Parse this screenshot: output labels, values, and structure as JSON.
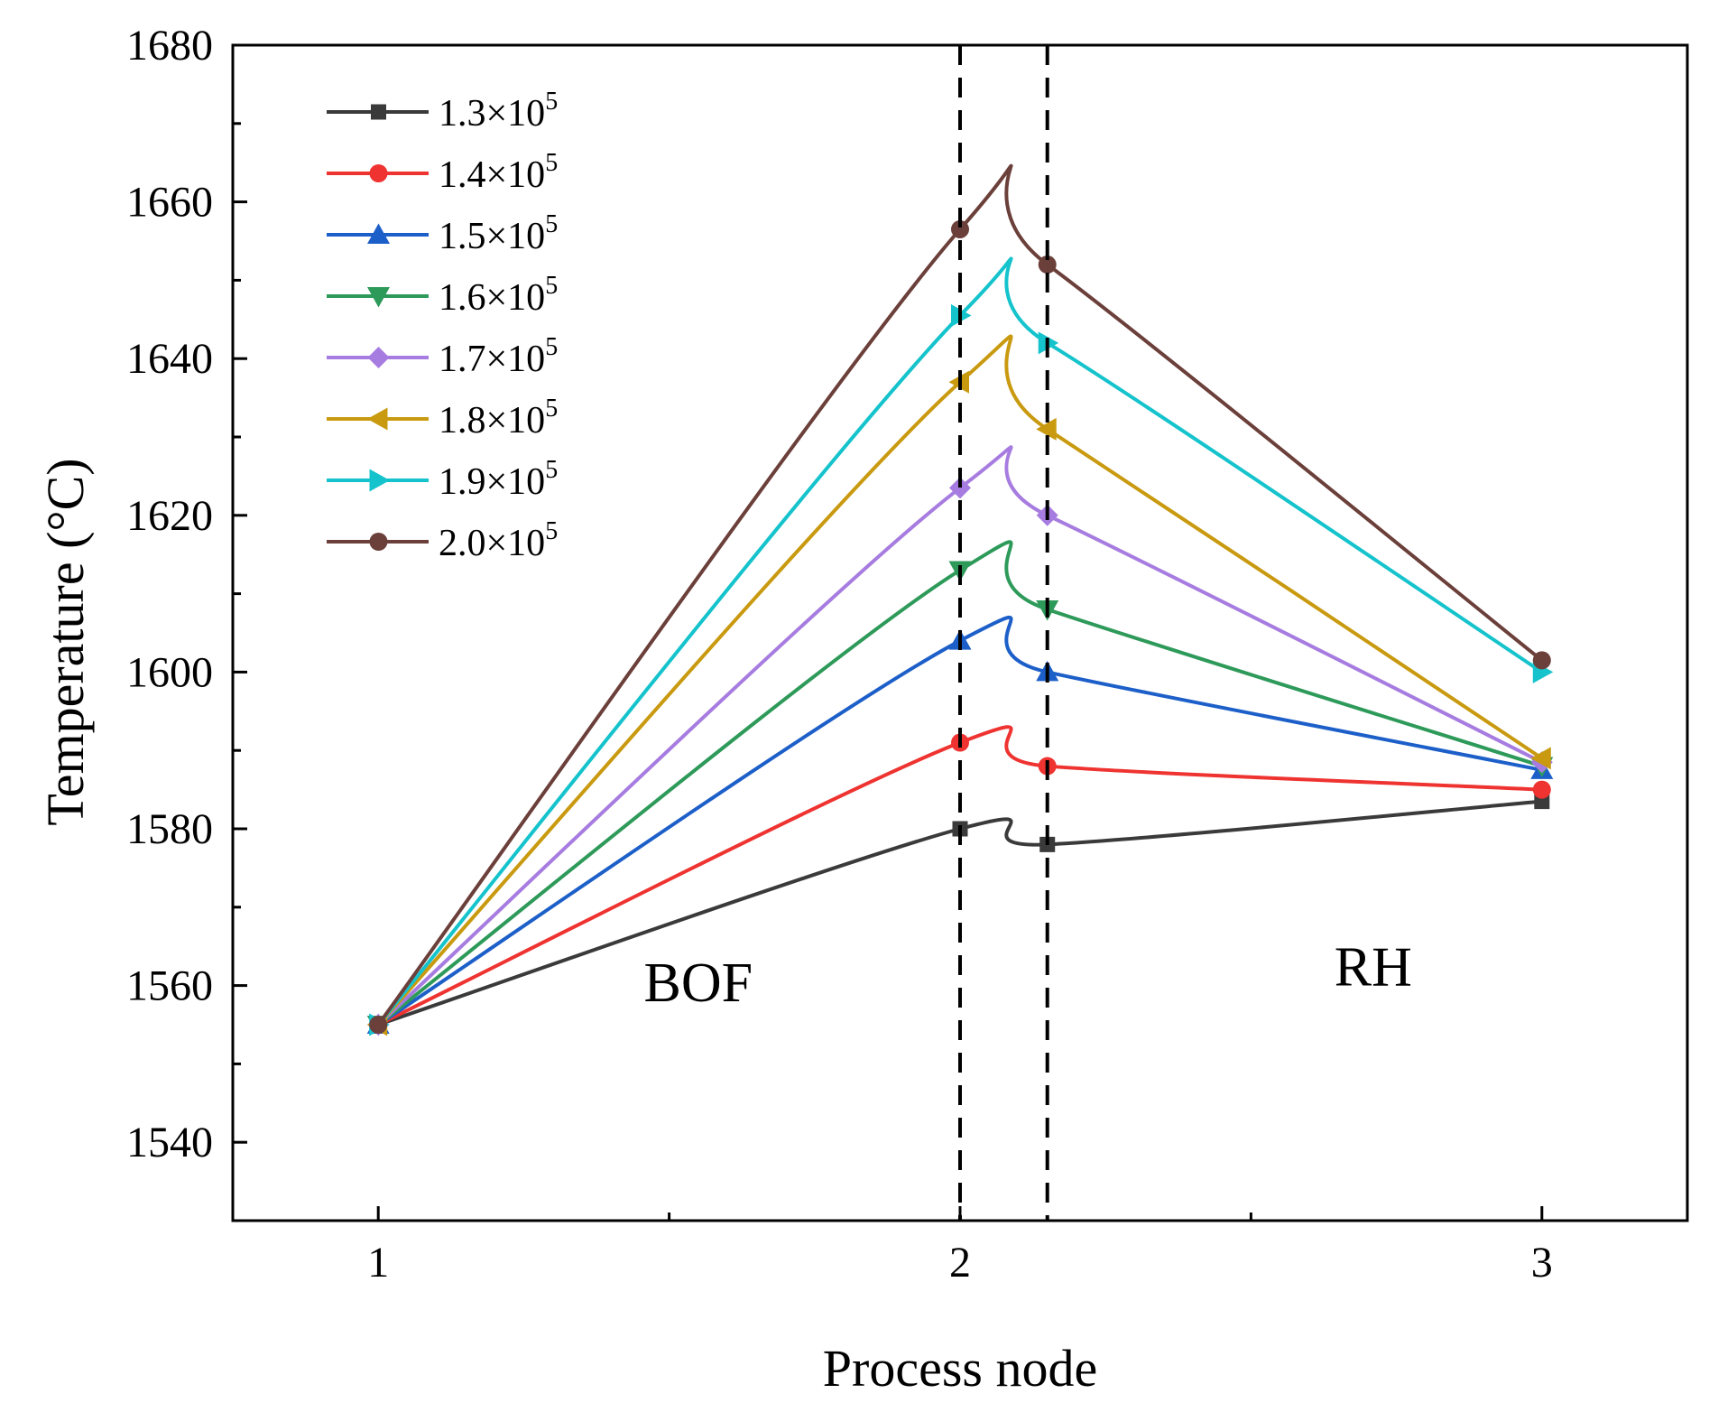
{
  "chart_data": {
    "type": "line",
    "xlabel": "Process node",
    "ylabel": "Temperature (°C)",
    "xlim": [
      0.75,
      3.25
    ],
    "ylim": [
      1530,
      1680
    ],
    "x_ticks": [
      "1",
      "2",
      "3"
    ],
    "y_ticks": [
      "1540",
      "1560",
      "1580",
      "1600",
      "1620",
      "1640",
      "1660",
      "1680"
    ],
    "grid": false,
    "legend_position": "top-left",
    "annotations": [
      {
        "text": "BOF",
        "x": 1.55,
        "y": 1558
      },
      {
        "text": "RH",
        "x": 2.71,
        "y": 1560
      }
    ],
    "vlines": [
      2.0,
      2.15
    ],
    "x": [
      1,
      2,
      2.15,
      3
    ],
    "series": [
      {
        "name": "1.3×10",
        "sup": "5",
        "color": "#3a3a3a",
        "marker": "square",
        "values": [
          1555,
          1580,
          1578,
          1583.5
        ]
      },
      {
        "name": "1.4×10",
        "sup": "5",
        "color": "#ee3330",
        "marker": "circle",
        "values": [
          1555,
          1591,
          1588,
          1585
        ]
      },
      {
        "name": "1.5×10",
        "sup": "5",
        "color": "#1d5fc9",
        "marker": "triangle-up",
        "values": [
          1555,
          1604,
          1600,
          1587.5
        ]
      },
      {
        "name": "1.6×10",
        "sup": "5",
        "color": "#2e9a5a",
        "marker": "triangle-down",
        "values": [
          1555,
          1613,
          1608,
          1588
        ]
      },
      {
        "name": "1.7×10",
        "sup": "5",
        "color": "#a77ce0",
        "marker": "diamond",
        "values": [
          1555,
          1623.5,
          1620,
          1588.5
        ]
      },
      {
        "name": "1.8×10",
        "sup": "5",
        "color": "#c99a10",
        "marker": "triangle-left",
        "values": [
          1555,
          1637,
          1631,
          1589
        ]
      },
      {
        "name": "1.9×10",
        "sup": "5",
        "color": "#15c3cc",
        "marker": "triangle-right",
        "values": [
          1555,
          1645.5,
          1642,
          1600
        ]
      },
      {
        "name": "2.0×10",
        "sup": "5",
        "color": "#6b3f3a",
        "marker": "circle",
        "values": [
          1555,
          1656.5,
          1652,
          1601.5
        ]
      }
    ]
  }
}
